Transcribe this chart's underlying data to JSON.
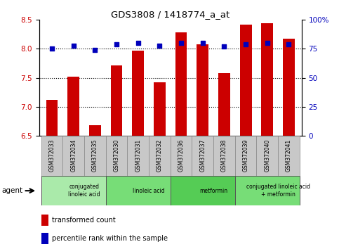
{
  "title": "GDS3808 / 1418774_a_at",
  "samples": [
    "GSM372033",
    "GSM372034",
    "GSM372035",
    "GSM372030",
    "GSM372031",
    "GSM372032",
    "GSM372036",
    "GSM372037",
    "GSM372038",
    "GSM372039",
    "GSM372040",
    "GSM372041"
  ],
  "red_values": [
    7.12,
    7.52,
    6.68,
    7.72,
    7.97,
    7.42,
    8.28,
    8.08,
    7.58,
    8.42,
    8.44,
    8.18
  ],
  "blue_values": [
    75,
    78,
    74,
    79,
    80,
    78,
    80,
    80,
    77,
    79,
    80,
    79
  ],
  "ylim_left": [
    6.5,
    8.5
  ],
  "ylim_right": [
    0,
    100
  ],
  "yticks_left": [
    6.5,
    7.0,
    7.5,
    8.0,
    8.5
  ],
  "yticks_right": [
    0,
    25,
    50,
    75,
    100
  ],
  "ytick_labels_right": [
    "0",
    "25",
    "50",
    "75",
    "100%"
  ],
  "groups": [
    {
      "label": "conjugated\nlinoleic acid",
      "start": 0,
      "end": 3,
      "color": "#aaeaaa"
    },
    {
      "label": "linoleic acid",
      "start": 3,
      "end": 6,
      "color": "#77dd77"
    },
    {
      "label": "metformin",
      "start": 6,
      "end": 9,
      "color": "#55cc55"
    },
    {
      "label": "conjugated linoleic acid\n+ metformin",
      "start": 9,
      "end": 12,
      "color": "#77dd77"
    }
  ],
  "bar_color": "#cc0000",
  "dot_color": "#0000bb",
  "grid_color": "#000000",
  "bg_color": "#ffffff",
  "sample_box_color": "#c8c8c8",
  "left_axis_color": "#cc0000",
  "right_axis_color": "#0000bb"
}
